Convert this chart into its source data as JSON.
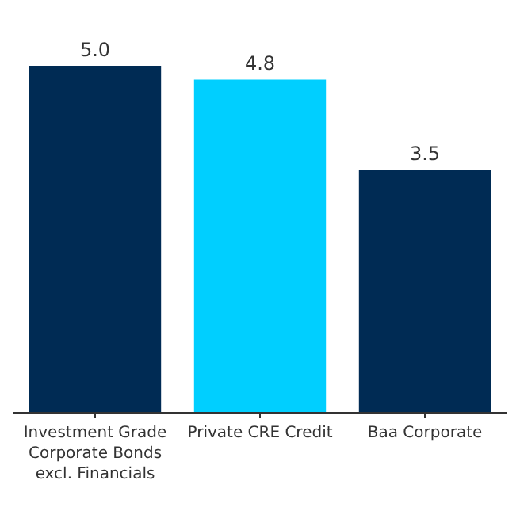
{
  "chart_data": {
    "type": "bar",
    "categories": [
      "Investment Grade Corporate Bonds excl. Financials",
      "Private CRE Credit",
      "Baa Corporate"
    ],
    "values": [
      5.0,
      4.8,
      3.5
    ],
    "value_labels": [
      "5.0",
      "4.8",
      "3.5"
    ],
    "colors": [
      "#002b54",
      "#00cfff",
      "#002b54"
    ]
  }
}
